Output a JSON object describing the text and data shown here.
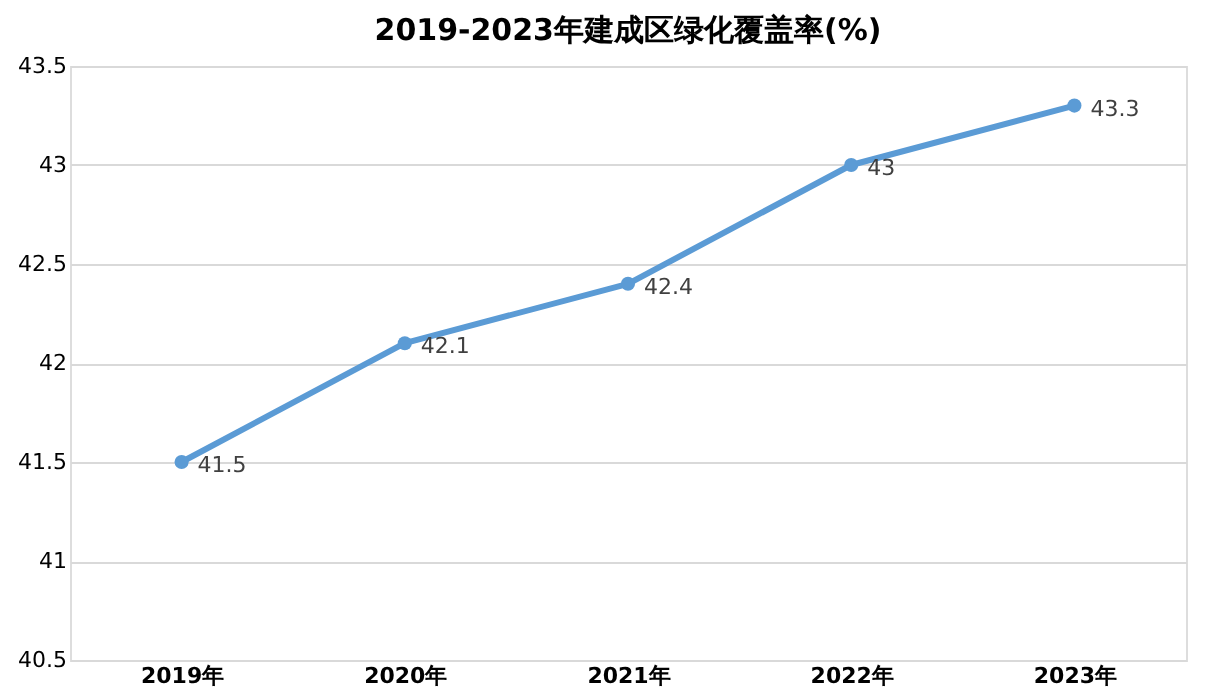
{
  "chart_data": {
    "type": "line",
    "title": "2019-2023年建成区绿化覆盖率(%)",
    "categories": [
      "2019年",
      "2020年",
      "2021年",
      "2022年",
      "2023年"
    ],
    "series": [
      {
        "color": "#5b9bd5",
        "values": [
          41.5,
          42.1,
          42.4,
          43,
          43.3
        ]
      }
    ],
    "ylim": [
      40.5,
      43.5
    ],
    "yticks": [
      40.5,
      41,
      41.5,
      42,
      42.5,
      43,
      43.5
    ],
    "grid": "y",
    "marker": "circle",
    "line_style": "solid",
    "data_labels": true
  }
}
